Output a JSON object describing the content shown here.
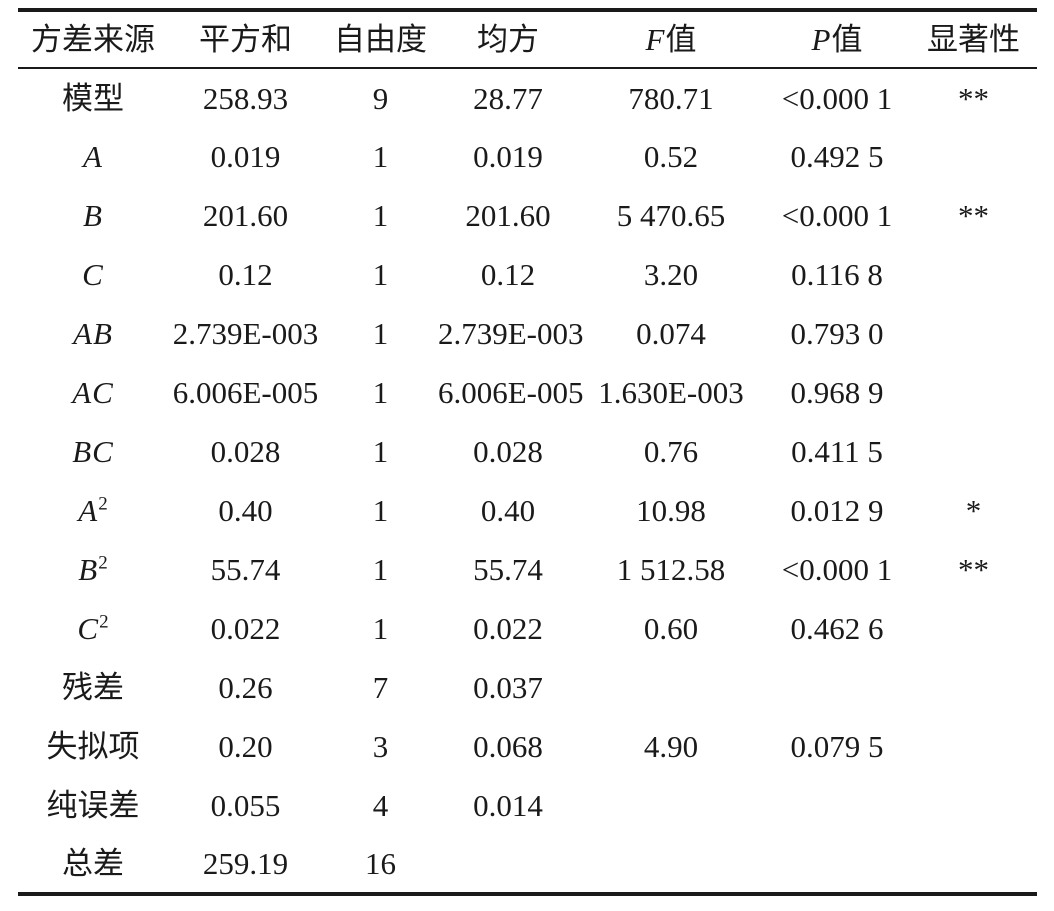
{
  "table": {
    "title": "anova-variance-analysis-table",
    "colors": {
      "text": "#1a1a1a",
      "rule": "#1a1a1a",
      "background": "#ffffff"
    },
    "headers": [
      {
        "key": "source",
        "label": "方差来源"
      },
      {
        "key": "ss",
        "label": "平方和"
      },
      {
        "key": "df",
        "label": "自由度"
      },
      {
        "key": "ms",
        "label": "均方"
      },
      {
        "key": "f",
        "label": "F值"
      },
      {
        "key": "p",
        "label": "P值"
      },
      {
        "key": "sig",
        "label": "显著性"
      }
    ],
    "rows": [
      {
        "source": "模型",
        "ss": "258.93",
        "df": "9",
        "ms": "28.77",
        "f": "780.71",
        "p": "<0.000 1",
        "sig": "**"
      },
      {
        "source": "A",
        "ss": "0.019",
        "df": "1",
        "ms": "0.019",
        "f": "0.52",
        "p": "0.492 5",
        "sig": ""
      },
      {
        "source": "B",
        "ss": "201.60",
        "df": "1",
        "ms": "201.60",
        "f": "5 470.65",
        "p": "<0.000 1",
        "sig": "**"
      },
      {
        "source": "C",
        "ss": "0.12",
        "df": "1",
        "ms": "0.12",
        "f": "3.20",
        "p": "0.116 8",
        "sig": ""
      },
      {
        "source": "AB",
        "ss": "2.739E-003",
        "df": "1",
        "ms": "2.739E-003",
        "f": "0.074",
        "p": "0.793 0",
        "sig": ""
      },
      {
        "source": "AC",
        "ss": "6.006E-005",
        "df": "1",
        "ms": "6.006E-005",
        "f": "1.630E-003",
        "p": "0.968 9",
        "sig": ""
      },
      {
        "source": "BC",
        "ss": "0.028",
        "df": "1",
        "ms": "0.028",
        "f": "0.76",
        "p": "0.411 5",
        "sig": ""
      },
      {
        "source": "A²",
        "ss": "0.40",
        "df": "1",
        "ms": "0.40",
        "f": "10.98",
        "p": "0.012 9",
        "sig": "*"
      },
      {
        "source": "B²",
        "ss": "55.74",
        "df": "1",
        "ms": "55.74",
        "f": "1 512.58",
        "p": "<0.000 1",
        "sig": "**"
      },
      {
        "source": "C²",
        "ss": "0.022",
        "df": "1",
        "ms": "0.022",
        "f": "0.60",
        "p": "0.462 6",
        "sig": ""
      },
      {
        "source": "残差",
        "ss": "0.26",
        "df": "7",
        "ms": "0.037",
        "f": "",
        "p": "",
        "sig": ""
      },
      {
        "source": "失拟项",
        "ss": "0.20",
        "df": "3",
        "ms": "0.068",
        "f": "4.90",
        "p": "0.079 5",
        "sig": ""
      },
      {
        "source": "纯误差",
        "ss": "0.055",
        "df": "4",
        "ms": "0.014",
        "f": "",
        "p": "",
        "sig": ""
      },
      {
        "source": "总差",
        "ss": "259.19",
        "df": "16",
        "ms": "",
        "f": "",
        "p": "",
        "sig": ""
      }
    ]
  }
}
